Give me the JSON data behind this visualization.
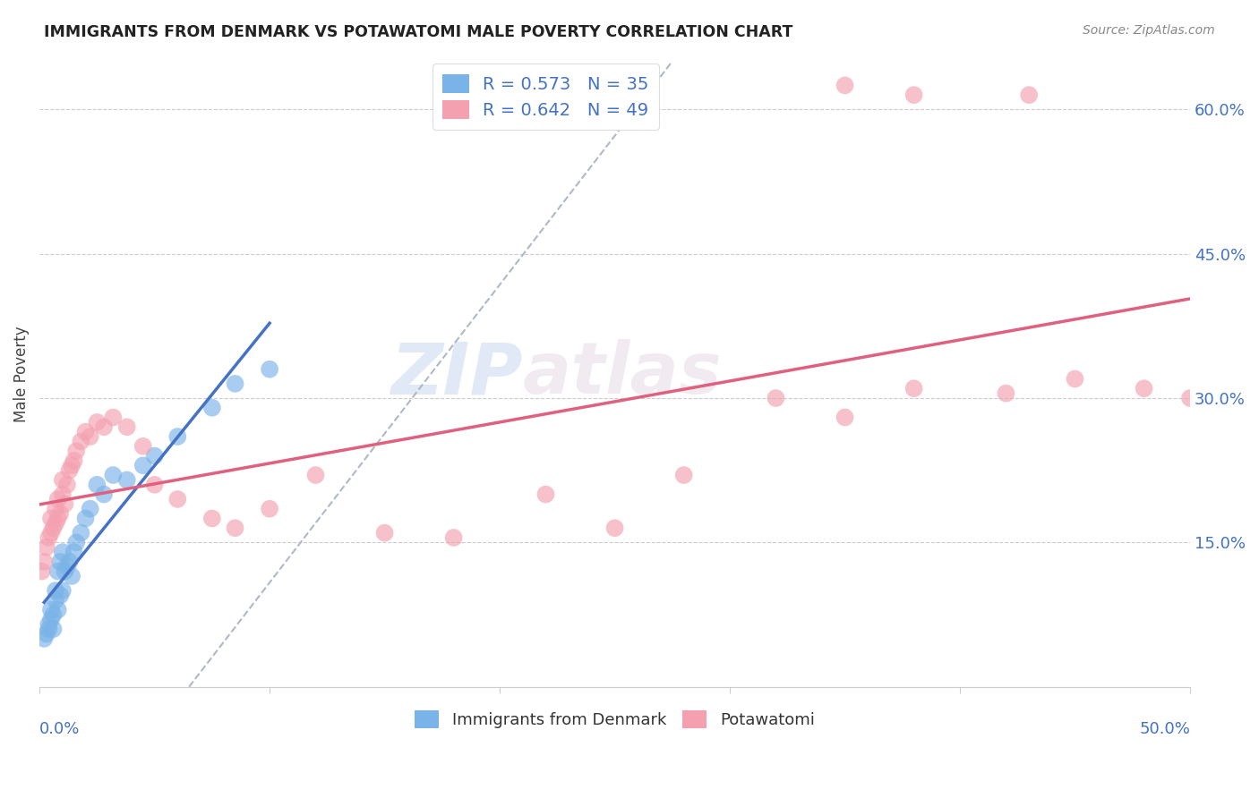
{
  "title": "IMMIGRANTS FROM DENMARK VS POTAWATOMI MALE POVERTY CORRELATION CHART",
  "source": "Source: ZipAtlas.com",
  "ylabel": "Male Poverty",
  "y_ticks": [
    0.0,
    0.15,
    0.3,
    0.45,
    0.6
  ],
  "y_tick_labels": [
    "",
    "15.0%",
    "30.0%",
    "45.0%",
    "60.0%"
  ],
  "xlim": [
    0.0,
    0.5
  ],
  "ylim": [
    0.0,
    0.65
  ],
  "background_color": "#ffffff",
  "watermark": "ZIPatlas",
  "legend1_label": "R = 0.573   N = 35",
  "legend2_label": "R = 0.642   N = 49",
  "legend_bottom_label1": "Immigrants from Denmark",
  "legend_bottom_label2": "Potawatomi",
  "blue_color": "#7ab3e8",
  "pink_color": "#f4a0b0",
  "blue_line_color": "#4472c4",
  "pink_line_color": "#e06080",
  "diag_line_color": "#b0b8c8",
  "denmark_x": [
    0.002,
    0.003,
    0.004,
    0.004,
    0.005,
    0.005,
    0.006,
    0.006,
    0.007,
    0.007,
    0.008,
    0.008,
    0.009,
    0.009,
    0.01,
    0.01,
    0.011,
    0.012,
    0.013,
    0.014,
    0.015,
    0.016,
    0.018,
    0.02,
    0.022,
    0.025,
    0.028,
    0.032,
    0.038,
    0.045,
    0.05,
    0.06,
    0.075,
    0.085,
    0.1
  ],
  "denmark_y": [
    0.05,
    0.055,
    0.06,
    0.065,
    0.07,
    0.08,
    0.06,
    0.075,
    0.09,
    0.1,
    0.08,
    0.12,
    0.095,
    0.13,
    0.1,
    0.14,
    0.12,
    0.125,
    0.13,
    0.115,
    0.14,
    0.15,
    0.16,
    0.175,
    0.185,
    0.21,
    0.2,
    0.22,
    0.215,
    0.23,
    0.24,
    0.26,
    0.29,
    0.315,
    0.33
  ],
  "potawatomi_x": [
    0.001,
    0.002,
    0.003,
    0.004,
    0.005,
    0.005,
    0.006,
    0.007,
    0.007,
    0.008,
    0.008,
    0.009,
    0.01,
    0.01,
    0.011,
    0.012,
    0.013,
    0.014,
    0.015,
    0.016,
    0.018,
    0.02,
    0.022,
    0.025,
    0.028,
    0.032,
    0.038,
    0.045,
    0.05,
    0.06,
    0.075,
    0.085,
    0.1,
    0.12,
    0.15,
    0.18,
    0.22,
    0.25,
    0.28,
    0.32,
    0.35,
    0.38,
    0.42,
    0.45,
    0.48,
    0.5,
    0.38,
    0.35,
    0.43
  ],
  "potawatomi_y": [
    0.12,
    0.13,
    0.145,
    0.155,
    0.16,
    0.175,
    0.165,
    0.17,
    0.185,
    0.175,
    0.195,
    0.18,
    0.2,
    0.215,
    0.19,
    0.21,
    0.225,
    0.23,
    0.235,
    0.245,
    0.255,
    0.265,
    0.26,
    0.275,
    0.27,
    0.28,
    0.27,
    0.25,
    0.21,
    0.195,
    0.175,
    0.165,
    0.185,
    0.22,
    0.16,
    0.155,
    0.2,
    0.165,
    0.22,
    0.3,
    0.28,
    0.31,
    0.305,
    0.32,
    0.31,
    0.3,
    0.615,
    0.625,
    0.615
  ]
}
